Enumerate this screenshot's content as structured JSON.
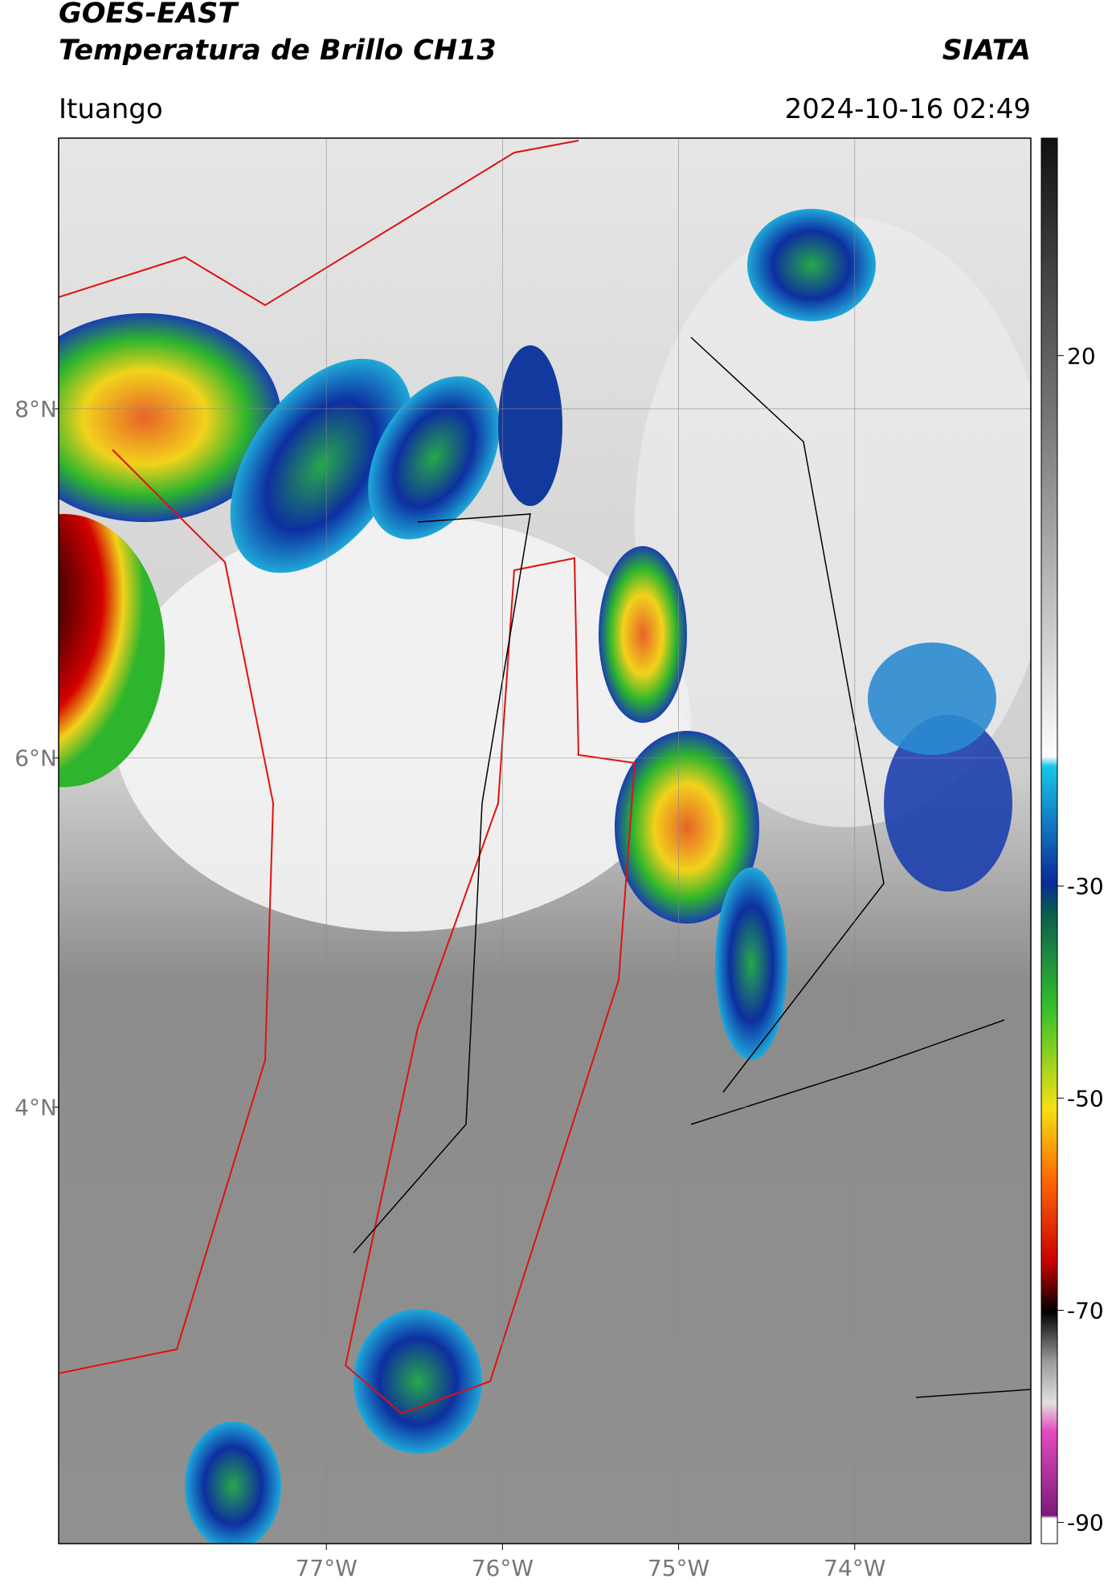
{
  "header": {
    "title_line1": "GOES-EAST",
    "title_line2": "Temperatura de Brillo CH13",
    "agency": "SIATA",
    "location": "Ituango",
    "timestamp": "2024-10-16 02:49"
  },
  "map": {
    "xlim": [
      -78.52,
      -73.0
    ],
    "ylim": [
      1.5,
      9.55
    ],
    "xticks": [
      {
        "value": -77,
        "label": "77°W"
      },
      {
        "value": -76,
        "label": "76°W"
      },
      {
        "value": -75,
        "label": "75°W"
      },
      {
        "value": -74,
        "label": "74°W"
      }
    ],
    "yticks": [
      {
        "value": 8,
        "label": "8°N"
      },
      {
        "value": 6,
        "label": "6°N"
      },
      {
        "value": 4,
        "label": "4°N"
      }
    ],
    "grid": true
  },
  "colorbar": {
    "clim": [
      -92,
      40.5
    ],
    "ticks": [
      20,
      -30,
      -50,
      -70,
      -90
    ]
  }
}
